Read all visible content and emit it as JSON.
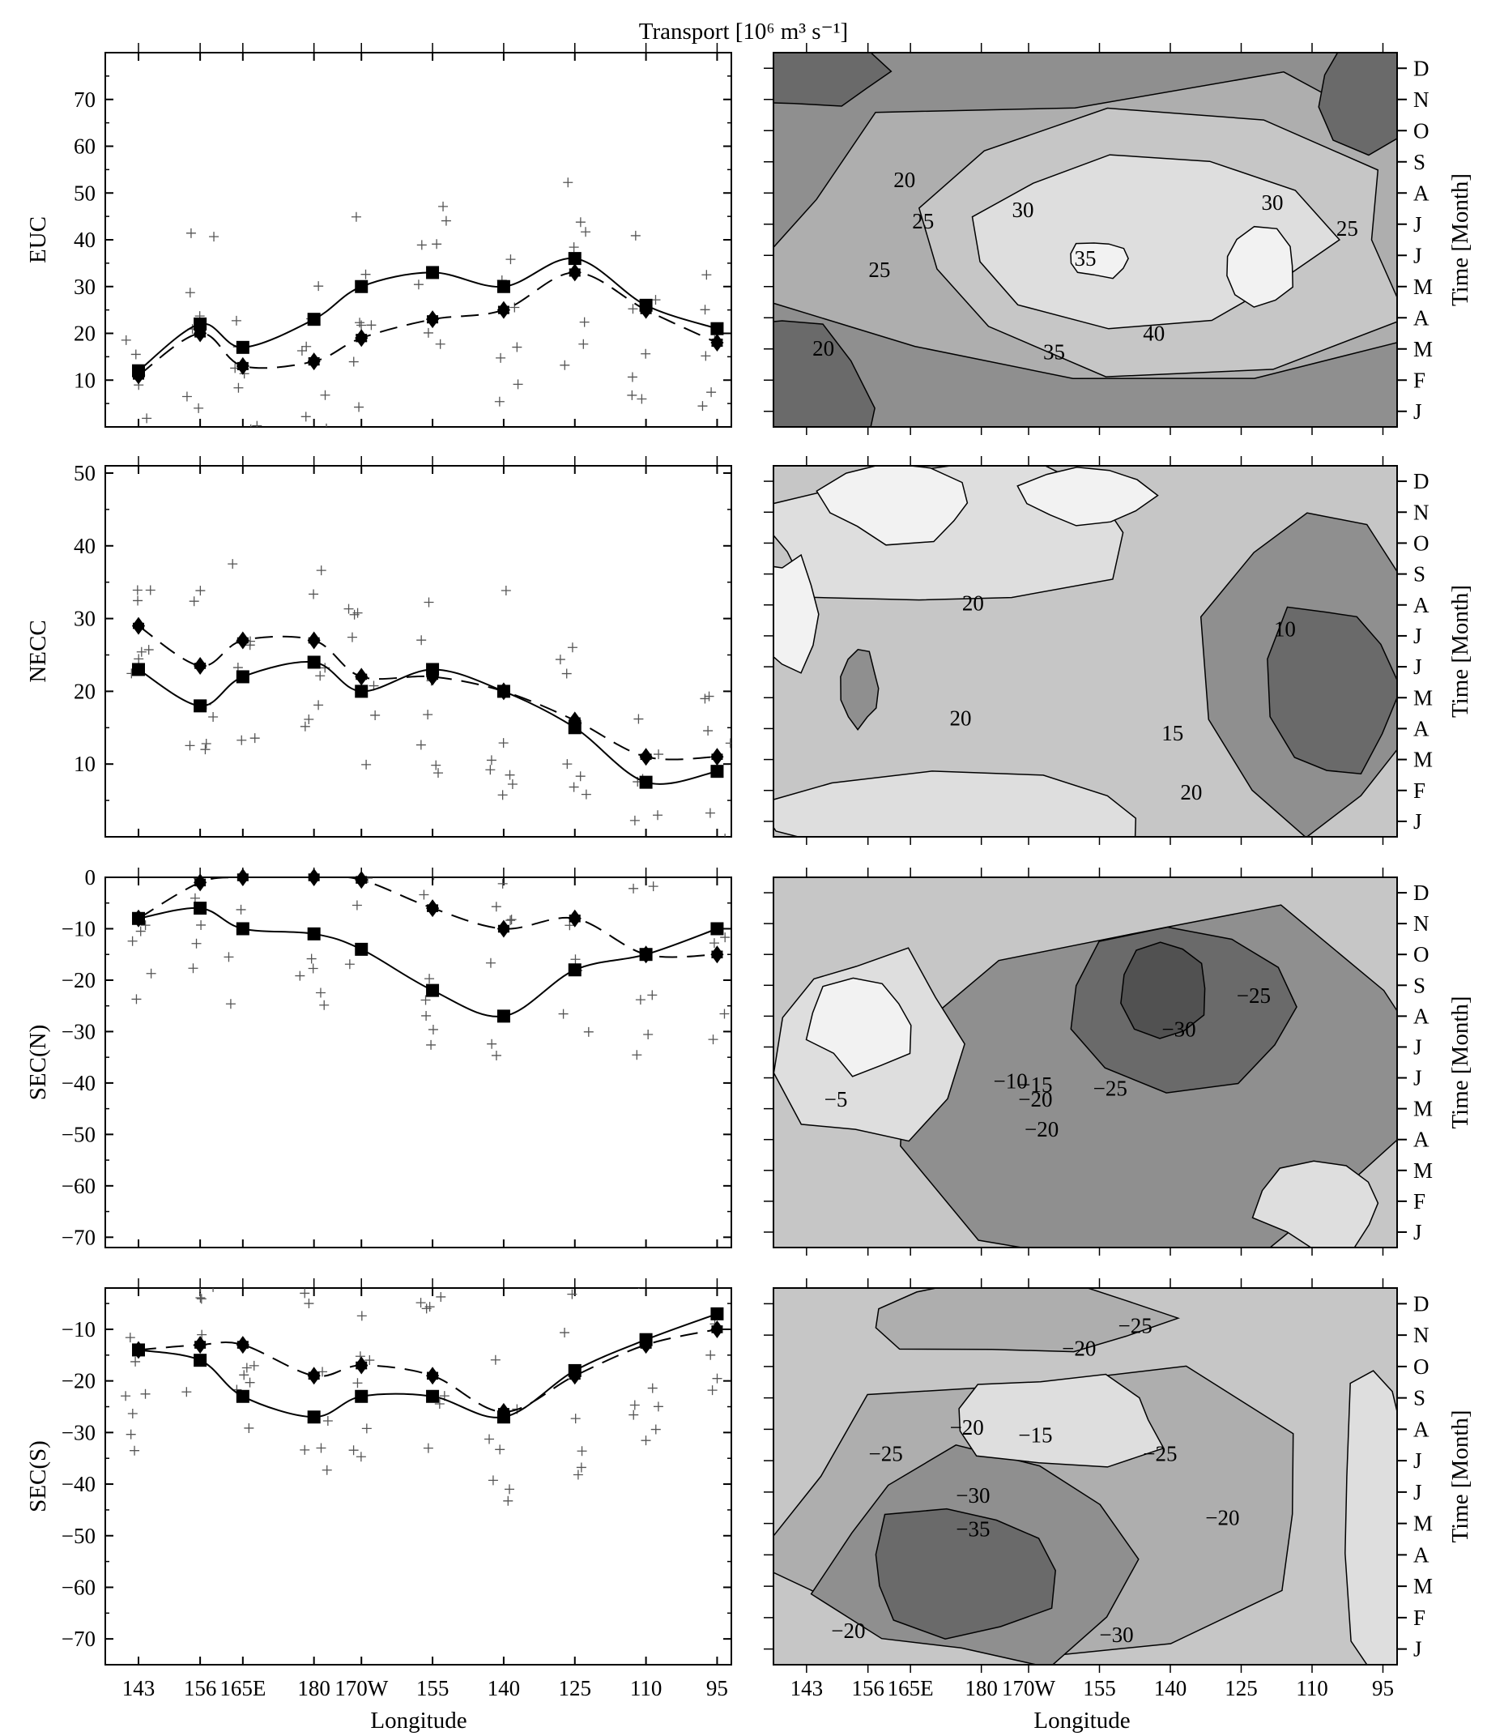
{
  "figure": {
    "top_title": "Transport [10⁶ m³ s⁻¹]",
    "left_xlabel": "Longitude",
    "right_xlabel": "Longitude",
    "right_ylabel": "Time [Month]"
  },
  "chart_data": [
    {
      "type": "line",
      "ylabel": "EUC",
      "ylim": [
        0,
        80
      ],
      "yticks": [
        10,
        20,
        30,
        40,
        50,
        60,
        70
      ],
      "x_ticklabels": [
        "143",
        "156",
        "165E",
        "180",
        "170W",
        "155",
        "140",
        "125",
        "110",
        "95"
      ],
      "x": [
        143,
        156,
        165,
        180,
        190,
        205,
        220,
        235,
        250,
        265
      ],
      "series": [
        {
          "values": [
            12,
            22,
            17,
            23,
            30,
            33,
            30,
            36,
            26,
            21
          ]
        },
        {
          "values": [
            11,
            20,
            13,
            14,
            19,
            23,
            25,
            33,
            25,
            18
          ]
        }
      ]
    },
    {
      "type": "line",
      "ylabel": "NECC",
      "ylim": [
        0,
        51
      ],
      "yticks": [
        10,
        20,
        30,
        40,
        50
      ],
      "x_ticklabels": [
        "143",
        "156",
        "165E",
        "180",
        "170W",
        "155",
        "140",
        "125",
        "110",
        "95"
      ],
      "x": [
        143,
        156,
        165,
        180,
        190,
        205,
        220,
        235,
        250,
        265
      ],
      "series": [
        {
          "values": [
            23,
            18,
            22,
            24,
            20,
            23,
            20,
            15,
            7.5,
            9
          ]
        },
        {
          "values": [
            29,
            23.5,
            27,
            27,
            22,
            22,
            20,
            16,
            11,
            11
          ]
        }
      ]
    },
    {
      "type": "line",
      "ylabel": "SEC(N)",
      "ylim": [
        -72,
        0
      ],
      "yticks": [
        0,
        -10,
        -20,
        -30,
        -40,
        -50,
        -60,
        -70
      ],
      "x_ticklabels": [
        "143",
        "156",
        "165E",
        "180",
        "170W",
        "155",
        "140",
        "125",
        "110",
        "95"
      ],
      "x": [
        143,
        156,
        165,
        180,
        190,
        205,
        220,
        235,
        250,
        265
      ],
      "series": [
        {
          "values": [
            -8,
            -6,
            -10,
            -11,
            -14,
            -22,
            -27,
            -18,
            -15,
            -10
          ]
        },
        {
          "values": [
            -8,
            -1,
            0,
            0,
            -0.5,
            -6,
            -10,
            -8,
            -15,
            -15
          ]
        }
      ]
    },
    {
      "type": "line",
      "ylabel": "SEC(S)",
      "ylim": [
        -75,
        -2
      ],
      "yticks": [
        -10,
        -20,
        -30,
        -40,
        -50,
        -60,
        -70
      ],
      "x_ticklabels": [
        "143",
        "156",
        "165E",
        "180",
        "170W",
        "155",
        "140",
        "125",
        "110",
        "95"
      ],
      "x": [
        143,
        156,
        165,
        180,
        190,
        205,
        220,
        235,
        250,
        265
      ],
      "series": [
        {
          "values": [
            -14,
            -16,
            -23,
            -27,
            -23,
            -23,
            -27,
            -18,
            -12,
            -7
          ]
        },
        {
          "values": [
            -14,
            -13,
            -13,
            -19,
            -17,
            -19,
            -26,
            -19,
            -13,
            -10
          ]
        }
      ]
    },
    {
      "type": "heatmap",
      "name": "EUC-contours",
      "y_ticklabels": [
        "D",
        "N",
        "O",
        "S",
        "A",
        "J",
        "J",
        "M",
        "A",
        "M",
        "F",
        "J"
      ],
      "x_ticklabels": [
        "143",
        "156",
        "165E",
        "180",
        "170W",
        "155",
        "140",
        "125",
        "110",
        "95"
      ],
      "contour_labels": [
        "20",
        "25",
        "30",
        "35",
        "30",
        "25",
        "25",
        "40",
        "35",
        "20"
      ]
    },
    {
      "type": "heatmap",
      "name": "NECC-contours",
      "y_ticklabels": [
        "D",
        "N",
        "O",
        "S",
        "A",
        "J",
        "J",
        "M",
        "A",
        "M",
        "F",
        "J"
      ],
      "x_ticklabels": [
        "143",
        "156",
        "165E",
        "180",
        "170W",
        "155",
        "140",
        "125",
        "110",
        "95"
      ],
      "contour_labels": [
        "20",
        "10",
        "20",
        "15",
        "20"
      ]
    },
    {
      "type": "heatmap",
      "name": "SECN-contours",
      "y_ticklabels": [
        "D",
        "N",
        "O",
        "S",
        "A",
        "J",
        "J",
        "M",
        "A",
        "M",
        "F",
        "J"
      ],
      "x_ticklabels": [
        "143",
        "156",
        "165E",
        "180",
        "170W",
        "155",
        "140",
        "125",
        "110",
        "95"
      ],
      "contour_labels": [
        "-25",
        "-30",
        "-20",
        "-25",
        "-5",
        "-10",
        "-15",
        "-20"
      ]
    },
    {
      "type": "heatmap",
      "name": "SECS-contours",
      "y_ticklabels": [
        "D",
        "N",
        "O",
        "S",
        "A",
        "J",
        "J",
        "M",
        "A",
        "M",
        "F",
        "J"
      ],
      "x_ticklabels": [
        "143",
        "156",
        "165E",
        "180",
        "170W",
        "155",
        "140",
        "125",
        "110",
        "95"
      ],
      "contour_labels": [
        "-25",
        "-20",
        "-15",
        "-20",
        "-25",
        "-30",
        "-35",
        "-25",
        "-20",
        "-30",
        "-20"
      ]
    }
  ]
}
